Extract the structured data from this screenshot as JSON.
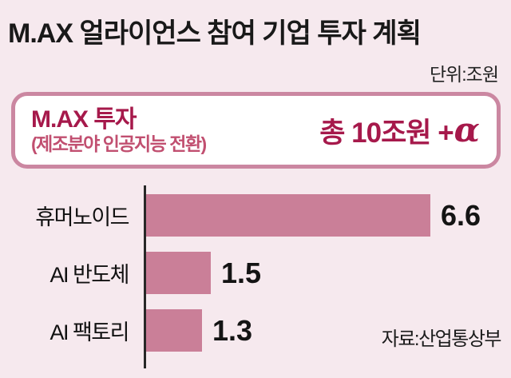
{
  "header": {
    "title": "M.AX 얼라이언스 참여 기업 투자 계획",
    "unit_label": "단위:조원"
  },
  "highlight_box": {
    "title": "M.AX 투자",
    "subtitle": "(제조분야 인공지능 전환)",
    "total_prefix": "총 10조원 +",
    "total_alpha": "α"
  },
  "source": "자료:산업통상부",
  "colors": {
    "background": "#f6e9ee",
    "accent": "#a6194b",
    "subtitle": "#c14f70",
    "bar": "#ca7f98",
    "box_border": "#cb87a1",
    "axis": "#272727",
    "text": "#191919"
  },
  "chart_data": {
    "type": "bar",
    "orientation": "horizontal",
    "title": "M.AX 얼라이언스 참여 기업 투자 계획",
    "unit": "조원",
    "categories": [
      "휴머노이드",
      "AI 반도체",
      "AI 팩토리"
    ],
    "values": [
      6.6,
      1.5,
      1.3
    ],
    "value_labels": [
      "6.6",
      "1.5",
      "1.3"
    ],
    "xlim": [
      0,
      7
    ],
    "grid": false,
    "legend": null,
    "annotation": "총 10조원 +α (M.AX 투자, 제조분야 인공지능 전환)",
    "source": "자료:산업통상부"
  }
}
